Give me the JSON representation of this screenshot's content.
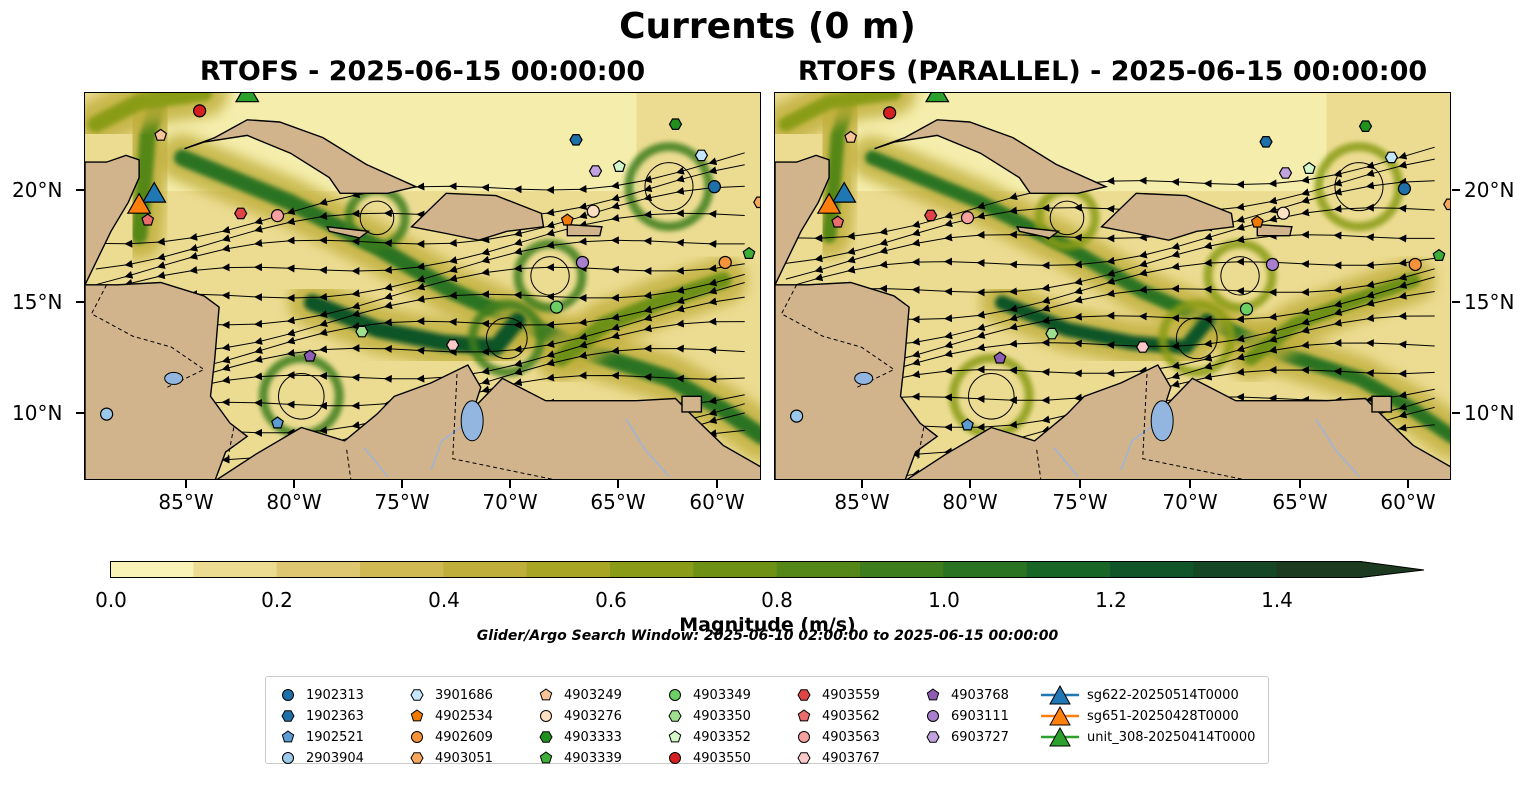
{
  "figure": {
    "title": "Currents (0 m)",
    "panels": [
      {
        "title": "RTOFS - 2025-06-15 00:00:00"
      },
      {
        "title": "RTOFS (PARALLEL) - 2025-06-15 00:00:00"
      }
    ],
    "lon_ticks": [
      "85°W",
      "80°W",
      "75°W",
      "70°W",
      "65°W",
      "60°W"
    ],
    "lat_ticks": [
      "20°N",
      "15°N",
      "10°N"
    ],
    "extent": {
      "lon_min": -89.5,
      "lon_max": -58.2,
      "lat_min": 7.0,
      "lat_max": 24.4
    }
  },
  "colorbar": {
    "label": "Magnitude (m/s)",
    "ticks": [
      "0.0",
      "0.2",
      "0.4",
      "0.6",
      "0.8",
      "1.0",
      "1.2",
      "1.4"
    ],
    "range": [
      0,
      1.5
    ],
    "extend": "max",
    "colors": [
      "#faf3b8",
      "#ecdc92",
      "#dfc670",
      "#d0b852",
      "#bfae3a",
      "#a7a523",
      "#8a9c17",
      "#6d9015",
      "#548717",
      "#3e7d1d",
      "#2a7322",
      "#176625",
      "#0f5528",
      "#154727",
      "#1c3a20"
    ]
  },
  "search_window": "Glider/Argo Search Window: 2025-06-10 02:00:00 to 2025-06-15 00:00:00",
  "legend": {
    "items": [
      {
        "label": "1902313",
        "marker": "circle",
        "color": "#1f6fa8"
      },
      {
        "label": "1902363",
        "marker": "hexagon",
        "color": "#1f6fa8"
      },
      {
        "label": "1902521",
        "marker": "pentagon",
        "color": "#5d9bd3"
      },
      {
        "label": "2903904",
        "marker": "circle",
        "color": "#9cc8ea"
      },
      {
        "label": "3901686",
        "marker": "hexagon",
        "color": "#c6e6fb"
      },
      {
        "label": "4902534",
        "marker": "pentagon",
        "color": "#ef7a00"
      },
      {
        "label": "4902609",
        "marker": "circle",
        "color": "#f5923a"
      },
      {
        "label": "4903051",
        "marker": "hexagon",
        "color": "#f7a85a"
      },
      {
        "label": "4903249",
        "marker": "pentagon",
        "color": "#f9c497"
      },
      {
        "label": "4903276",
        "marker": "circle",
        "color": "#fde0c4"
      },
      {
        "label": "4903333",
        "marker": "hexagon",
        "color": "#22901f"
      },
      {
        "label": "4903339",
        "marker": "pentagon",
        "color": "#3fae39"
      },
      {
        "label": "4903349",
        "marker": "circle",
        "color": "#6ccf63"
      },
      {
        "label": "4903350",
        "marker": "hexagon",
        "color": "#9fe08f"
      },
      {
        "label": "4903352",
        "marker": "pentagon",
        "color": "#d4f8c9"
      },
      {
        "label": "4903550",
        "marker": "circle",
        "color": "#d42020"
      },
      {
        "label": "4903559",
        "marker": "hexagon",
        "color": "#e04444"
      },
      {
        "label": "4903562",
        "marker": "pentagon",
        "color": "#ea6d6d"
      },
      {
        "label": "4903563",
        "marker": "circle",
        "color": "#f7a0a0"
      },
      {
        "label": "4903767",
        "marker": "hexagon",
        "color": "#fcc9c9"
      },
      {
        "label": "4903768",
        "marker": "pentagon",
        "color": "#8d5cb3"
      },
      {
        "label": "6903111",
        "marker": "circle",
        "color": "#a77fcc"
      },
      {
        "label": "6903727",
        "marker": "hexagon",
        "color": "#c3a2e0"
      },
      {
        "label": "sg622-20250514T0000",
        "marker": "triangle",
        "color": "#1f77b4"
      },
      {
        "label": "sg651-20250428T0000",
        "marker": "triangle",
        "color": "#ff7f0e"
      },
      {
        "label": "unit_308-20250414T0000",
        "marker": "triangle",
        "color": "#2ca02c"
      }
    ]
  },
  "floats": [
    {
      "id": "1902313",
      "lon": -60.4,
      "lat": 20.2
    },
    {
      "id": "1902363",
      "lon": -66.8,
      "lat": 22.3
    },
    {
      "id": "1902521",
      "lon": -80.6,
      "lat": 9.6
    },
    {
      "id": "2903904",
      "lon": -88.5,
      "lat": 10.0
    },
    {
      "id": "3901686",
      "lon": -61.0,
      "lat": 21.6
    },
    {
      "id": "4902534",
      "lon": -67.2,
      "lat": 18.7
    },
    {
      "id": "4902609",
      "lon": -59.9,
      "lat": 16.8
    },
    {
      "id": "4903051",
      "lon": -58.3,
      "lat": 19.5
    },
    {
      "id": "4903249",
      "lon": -86.0,
      "lat": 22.5
    },
    {
      "id": "4903276",
      "lon": -66.0,
      "lat": 19.1
    },
    {
      "id": "4903333",
      "lon": -62.2,
      "lat": 23.0
    },
    {
      "id": "4903339",
      "lon": -58.8,
      "lat": 17.2
    },
    {
      "id": "4903349",
      "lon": -67.7,
      "lat": 14.8
    },
    {
      "id": "4903350",
      "lon": -76.7,
      "lat": 13.7
    },
    {
      "id": "4903352",
      "lon": -64.8,
      "lat": 21.1
    },
    {
      "id": "4903550",
      "lon": -84.2,
      "lat": 23.6
    },
    {
      "id": "4903559",
      "lon": -82.3,
      "lat": 19.0
    },
    {
      "id": "4903562",
      "lon": -86.6,
      "lat": 18.7
    },
    {
      "id": "4903563",
      "lon": -80.6,
      "lat": 18.9
    },
    {
      "id": "4903767",
      "lon": -72.5,
      "lat": 13.1
    },
    {
      "id": "4903768",
      "lon": -79.1,
      "lat": 12.6
    },
    {
      "id": "6903111",
      "lon": -66.5,
      "lat": 16.8
    },
    {
      "id": "6903727",
      "lon": -65.9,
      "lat": 20.9
    }
  ],
  "gliders": [
    {
      "id": "sg622-20250514T0000",
      "lon": -86.3,
      "lat": 19.8
    },
    {
      "id": "sg651-20250428T0000",
      "lon": -87.0,
      "lat": 19.3
    },
    {
      "id": "unit_308-20250414T0000",
      "lon": -82.0,
      "lat": 24.3
    }
  ]
}
